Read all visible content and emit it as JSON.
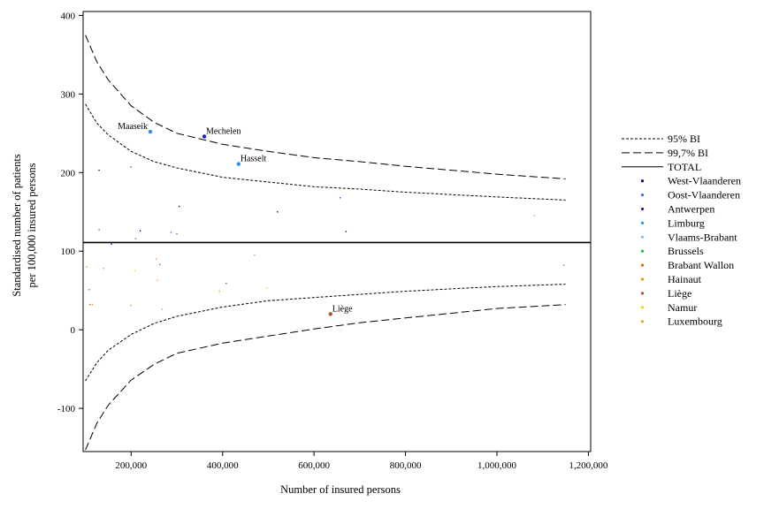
{
  "chart_data": {
    "type": "scatter",
    "xlabel": "Number of insured persons",
    "ylabel_line1": "Standardised number of patients",
    "ylabel_line2": "per 100,000 insured persons",
    "xlim": [
      95000,
      1205000
    ],
    "ylim": [
      -155,
      405
    ],
    "x_ticks": [
      {
        "value": 200000,
        "label": "200,000"
      },
      {
        "value": 400000,
        "label": "400,000"
      },
      {
        "value": 600000,
        "label": "600,000"
      },
      {
        "value": 800000,
        "label": "800,000"
      },
      {
        "value": 1000000,
        "label": "1,000,000"
      },
      {
        "value": 1200000,
        "label": "1,200,000"
      }
    ],
    "y_ticks": [
      {
        "value": 400,
        "label": "400"
      },
      {
        "value": 300,
        "label": "300"
      },
      {
        "value": 200,
        "label": "200"
      },
      {
        "value": 100,
        "label": "100"
      },
      {
        "value": 0,
        "label": "0"
      },
      {
        "value": -100,
        "label": "-100"
      }
    ],
    "total": 111,
    "legend": [
      {
        "label": "95% BI",
        "kind": "line",
        "dash": "short",
        "color": "#000000"
      },
      {
        "label": "99,7% BI",
        "kind": "line",
        "dash": "long",
        "color": "#000000"
      },
      {
        "label": "TOTAL",
        "kind": "line",
        "dash": "solid",
        "color": "#000000"
      },
      {
        "label": "West-Vlaanderen",
        "kind": "point",
        "color": "#00008b"
      },
      {
        "label": "Oost-Vlaanderen",
        "kind": "point",
        "color": "#3d6fd4"
      },
      {
        "label": "Antwerpen",
        "kind": "point",
        "color": "#1a1ae6"
      },
      {
        "label": "Limburg",
        "kind": "point",
        "color": "#2b8ff0"
      },
      {
        "label": "Vlaams-Brabant",
        "kind": "point",
        "color": "#7fbfee"
      },
      {
        "label": "Brussels",
        "kind": "point",
        "color": "#2db82d"
      },
      {
        "label": "Brabant Wallon",
        "kind": "point",
        "color": "#d2691e"
      },
      {
        "label": "Hainaut",
        "kind": "point",
        "color": "#ff8c1a"
      },
      {
        "label": "Liège",
        "kind": "point",
        "color": "#b3502a"
      },
      {
        "label": "Namur",
        "kind": "point",
        "color": "#ffd000"
      },
      {
        "label": "Luxembourg",
        "kind": "point",
        "color": "#f0a030"
      }
    ],
    "ci95_upper": [
      [
        100000,
        287
      ],
      [
        125000,
        263
      ],
      [
        150000,
        248
      ],
      [
        200000,
        227
      ],
      [
        250000,
        214
      ],
      [
        300000,
        206
      ],
      [
        400000,
        194
      ],
      [
        500000,
        188
      ],
      [
        600000,
        182
      ],
      [
        700000,
        179
      ],
      [
        800000,
        175
      ],
      [
        900000,
        172
      ],
      [
        1000000,
        169
      ],
      [
        1150000,
        165
      ]
    ],
    "ci95_lower": [
      [
        100000,
        -65
      ],
      [
        125000,
        -42
      ],
      [
        150000,
        -26
      ],
      [
        200000,
        -6
      ],
      [
        250000,
        8
      ],
      [
        300000,
        17
      ],
      [
        400000,
        29
      ],
      [
        500000,
        37
      ],
      [
        600000,
        41
      ],
      [
        700000,
        45
      ],
      [
        800000,
        49
      ],
      [
        900000,
        52
      ],
      [
        1000000,
        55
      ],
      [
        1150000,
        58
      ]
    ],
    "ci997_upper": [
      [
        100000,
        375
      ],
      [
        125000,
        341
      ],
      [
        150000,
        318
      ],
      [
        200000,
        285
      ],
      [
        250000,
        264
      ],
      [
        300000,
        250
      ],
      [
        400000,
        236
      ],
      [
        500000,
        227
      ],
      [
        600000,
        219
      ],
      [
        700000,
        214
      ],
      [
        800000,
        208
      ],
      [
        900000,
        203
      ],
      [
        1000000,
        198
      ],
      [
        1150000,
        192
      ]
    ],
    "ci997_lower": [
      [
        100000,
        -153
      ],
      [
        125000,
        -119
      ],
      [
        150000,
        -96
      ],
      [
        200000,
        -64
      ],
      [
        250000,
        -44
      ],
      [
        300000,
        -30
      ],
      [
        400000,
        -17
      ],
      [
        500000,
        -8
      ],
      [
        600000,
        1
      ],
      [
        700000,
        9
      ],
      [
        800000,
        15
      ],
      [
        900000,
        21
      ],
      [
        1000000,
        27
      ],
      [
        1150000,
        32
      ]
    ],
    "points": [
      {
        "x": 242000,
        "y": 252,
        "color": "#2b8ff0",
        "label": "Maaseik",
        "anchor": "left",
        "size": 2.2
      },
      {
        "x": 360000,
        "y": 246,
        "color": "#1a1ae6",
        "label": "Mechelen",
        "anchor": "right",
        "size": 2.2
      },
      {
        "x": 435000,
        "y": 211,
        "color": "#2b8ff0",
        "label": "Hasselt",
        "anchor": "right",
        "size": 2.2
      },
      {
        "x": 636000,
        "y": 20,
        "color": "#b3502a",
        "label": "Liège",
        "anchor": "right",
        "size": 2.2
      },
      {
        "x": 130000,
        "y": 203,
        "color": "#00008b",
        "size": 0.8
      },
      {
        "x": 200000,
        "y": 207,
        "color": "#3d6fd4",
        "size": 0.8
      },
      {
        "x": 305000,
        "y": 157,
        "color": "#00008b",
        "size": 0.8
      },
      {
        "x": 520000,
        "y": 150,
        "color": "#00008b",
        "size": 0.8
      },
      {
        "x": 657000,
        "y": 168,
        "color": "#1a1ae6",
        "size": 0.8
      },
      {
        "x": 1082000,
        "y": 145,
        "color": "#7fbfee",
        "size": 0.8
      },
      {
        "x": 130000,
        "y": 127,
        "color": "#3d6fd4",
        "size": 0.8
      },
      {
        "x": 157000,
        "y": 109,
        "color": "#00008b",
        "size": 0.8
      },
      {
        "x": 210000,
        "y": 116,
        "color": "#3d6fd4",
        "size": 0.8
      },
      {
        "x": 220000,
        "y": 126,
        "color": "#00008b",
        "size": 0.8
      },
      {
        "x": 287000,
        "y": 124,
        "color": "#3d6fd4",
        "size": 0.8
      },
      {
        "x": 300000,
        "y": 122,
        "color": "#3d6fd4",
        "size": 0.8
      },
      {
        "x": 670000,
        "y": 125,
        "color": "#00008b",
        "size": 0.8
      },
      {
        "x": 103000,
        "y": 80,
        "color": "#ff8c1a",
        "size": 0.8
      },
      {
        "x": 108000,
        "y": 51,
        "color": "#2db82d",
        "size": 0.8
      },
      {
        "x": 110000,
        "y": 32,
        "color": "#d2691e",
        "size": 0.8
      },
      {
        "x": 115000,
        "y": 32,
        "color": "#ff8c1a",
        "size": 0.8
      },
      {
        "x": 140000,
        "y": 78,
        "color": "#ff8c1a",
        "size": 0.8
      },
      {
        "x": 200000,
        "y": 31,
        "color": "#f0a030",
        "size": 0.8
      },
      {
        "x": 208000,
        "y": 75,
        "color": "#ffd000",
        "size": 0.8
      },
      {
        "x": 255000,
        "y": 90,
        "color": "#ff8c1a",
        "size": 0.8
      },
      {
        "x": 257000,
        "y": 63,
        "color": "#ff8c1a",
        "size": 0.8
      },
      {
        "x": 263000,
        "y": 83,
        "color": "#b3502a",
        "size": 0.8
      },
      {
        "x": 268000,
        "y": 26,
        "color": "#ff8c1a",
        "size": 0.8
      },
      {
        "x": 393000,
        "y": 49,
        "color": "#ff8c1a",
        "size": 0.8
      },
      {
        "x": 408000,
        "y": 59,
        "color": "#b3502a",
        "size": 0.8
      },
      {
        "x": 470000,
        "y": 95,
        "color": "#ff8c1a",
        "size": 0.8
      },
      {
        "x": 497000,
        "y": 53,
        "color": "#ffd000",
        "size": 0.8
      },
      {
        "x": 1146000,
        "y": 82,
        "color": "#2db82d",
        "size": 0.8
      }
    ]
  }
}
